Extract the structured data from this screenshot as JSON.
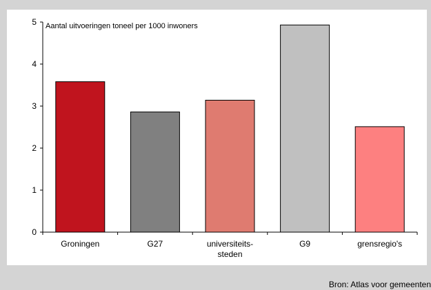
{
  "chart_data": {
    "type": "bar",
    "title": "Aantal uitvoeringen toneel per 1000 inwoners",
    "categories": [
      [
        "Groningen"
      ],
      [
        "G27"
      ],
      [
        "universiteits-",
        "steden"
      ],
      [
        "G9"
      ],
      [
        "grensregio's"
      ]
    ],
    "values": [
      3.58,
      2.86,
      3.14,
      4.93,
      2.51
    ],
    "bar_colors": [
      "#c0141e",
      "#808080",
      "#df7b70",
      "#c0c0c0",
      "#fd8080"
    ],
    "ylim": [
      0,
      5
    ],
    "yticks": [
      "0",
      "1",
      "2",
      "3",
      "4",
      "5"
    ],
    "grid": false,
    "legend": "none"
  },
  "footer": {
    "source": "Bron: Atlas voor gemeenten"
  }
}
